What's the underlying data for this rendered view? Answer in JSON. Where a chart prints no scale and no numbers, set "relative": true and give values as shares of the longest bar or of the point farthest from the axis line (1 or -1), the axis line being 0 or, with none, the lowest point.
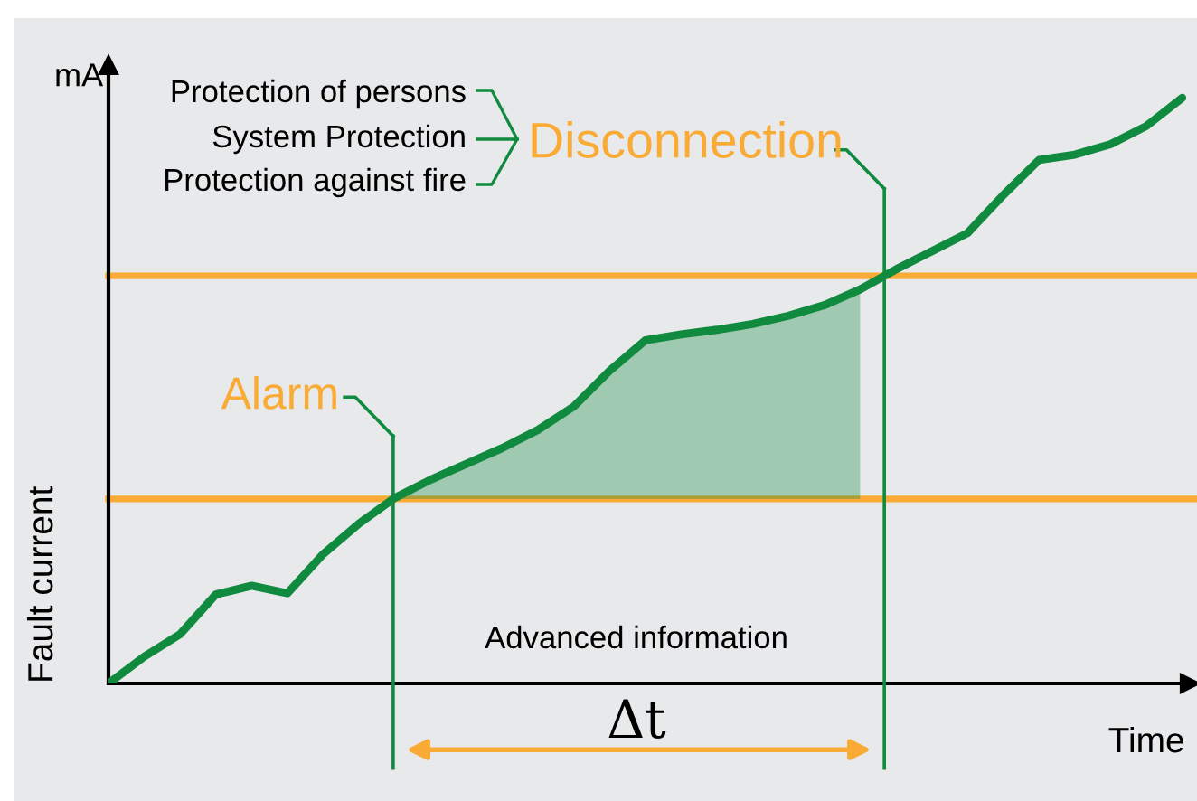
{
  "chart_data": {
    "type": "line",
    "relative": true,
    "xlabel": "Time",
    "ylabel": "Fault current",
    "categories": [
      null,
      null,
      null,
      null,
      null,
      null,
      null,
      null,
      null,
      null,
      null,
      null,
      null,
      null,
      null,
      null,
      null,
      null,
      null,
      null,
      null,
      null,
      null,
      null,
      null,
      null,
      null,
      null,
      null,
      null,
      null
    ],
    "series": [
      {
        "color": "#108a3e",
        "values": [
          0,
          0.046,
          0.084,
          0.152,
          0.167,
          0.154,
          0.221,
          0.273,
          0.317,
          0.348,
          0.375,
          0.402,
          0.433,
          0.473,
          0.534,
          0.586,
          0.596,
          0.604,
          0.614,
          0.628,
          0.646,
          0.673,
          0.707,
          0.738,
          0.769,
          0.834,
          0.894,
          0.903,
          0.921,
          0.952,
          1
        ],
        "lower": [
          null,
          null,
          null,
          null,
          null,
          null,
          null,
          null,
          0.315,
          0.315,
          0.315,
          0.315,
          0.315,
          0.315,
          0.315,
          0.315,
          0.315,
          0.315,
          0.315,
          0.315,
          0.315,
          0.315,
          null,
          null,
          null,
          null,
          null,
          null,
          null,
          null,
          null
        ],
        "upper": [
          null,
          null,
          null,
          null,
          null,
          null,
          null,
          null,
          0.317,
          0.348,
          0.375,
          0.402,
          0.433,
          0.473,
          0.534,
          0.586,
          0.596,
          0.604,
          0.614,
          0.628,
          0.646,
          0.673,
          null,
          null,
          null,
          null,
          null,
          null,
          null,
          null,
          null
        ]
      }
    ],
    "ref_lines": [
      {
        "axis": "y",
        "value": 0.315,
        "label": "Alarm",
        "color": "#f9ab36"
      },
      {
        "axis": "y",
        "value": 0.696,
        "label": "Disconnection",
        "color": "#f9ab36"
      }
    ],
    "annotations": [
      "mA",
      "Protection of persons",
      "System Protection",
      "Protection against fire",
      "Advanced information",
      "Δt"
    ],
    "marker": "none",
    "line_style": "solid"
  }
}
